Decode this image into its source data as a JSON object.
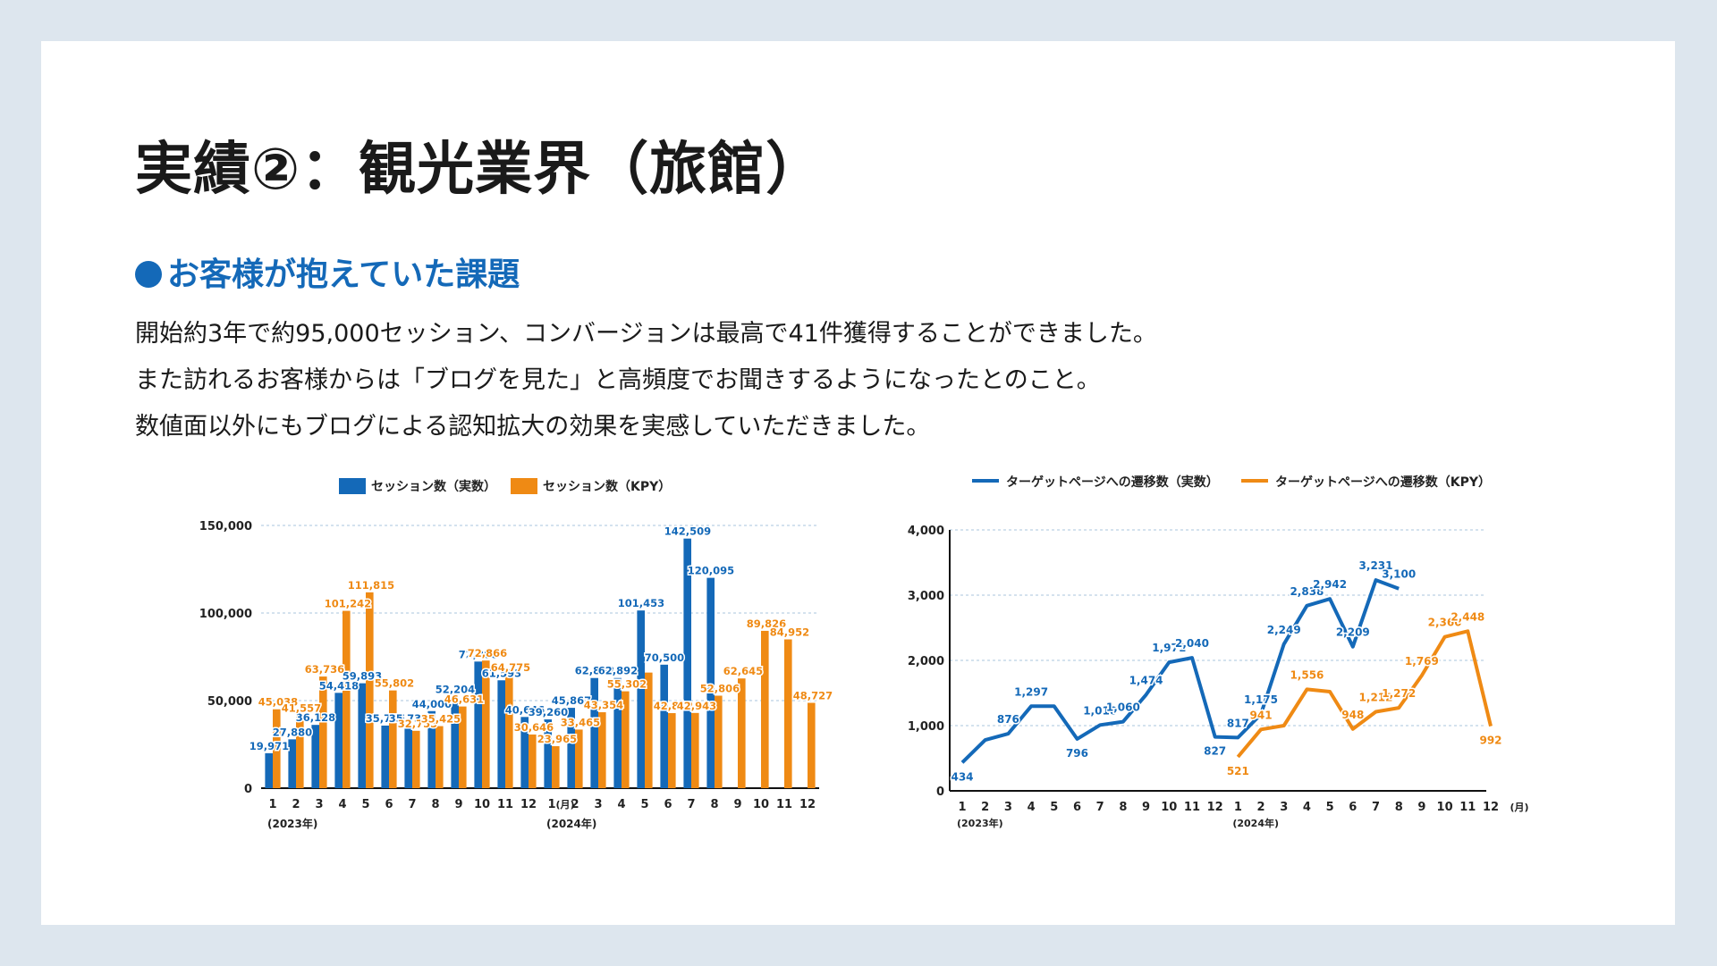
{
  "title": "実績②：観光業界（旅館）",
  "section": {
    "heading": "お客様が抱えていた課題"
  },
  "description": [
    "開始約3年で約95,000セッション、コンバージョンは最高で41件獲得することができました。",
    "また訪れるお客様からは「ブログを見た」と高頻度でお聞きするようになったとのこと。",
    "数値面以外にもブログによる認知拡大の効果を実感していただきました。"
  ],
  "colors": {
    "actual": "#1469b8",
    "kpi": "#ef8a14",
    "background": "#dde6ee"
  },
  "chart_data": [
    {
      "type": "bar",
      "categories": [
        "1",
        "2",
        "3",
        "4",
        "5",
        "6",
        "7",
        "8",
        "9",
        "10",
        "11",
        "12",
        "1",
        "2",
        "3",
        "4",
        "5",
        "6",
        "7",
        "8",
        "9",
        "10",
        "11",
        "12"
      ],
      "year_labels": [
        "(2023年)",
        "(2024年)"
      ],
      "month_unit": "(月)",
      "series": [
        {
          "name": "セッション数（実数）",
          "values": [
            19971,
            27880,
            36128,
            54418,
            59893,
            35735,
            35735,
            44000,
            52204,
            72288,
            61593,
            40646,
            39260,
            45867,
            62893,
            62892,
            101453,
            70500,
            142509,
            120095,
            null,
            null,
            null,
            null
          ]
        },
        {
          "name": "セッション数（KPY）",
          "values": [
            45038,
            41557,
            63736,
            101242,
            111815,
            55802,
            32755,
            35425,
            46631,
            72866,
            64775,
            30646,
            23965,
            33465,
            43354,
            55302,
            66000,
            42842,
            42943,
            52806,
            62645,
            89826,
            84952,
            48727
          ]
        }
      ],
      "data_labels": [
        [
          "19,971",
          "27,880",
          "36,128",
          "54,418",
          "59,893",
          "35,735",
          "35,735",
          "44,000",
          "52,204",
          "72,288",
          "61,593",
          "40,646",
          "39,260",
          "45,867",
          "62,893",
          "62,892",
          "101,453",
          "70,500",
          "142,509",
          "120,095",
          "",
          "",
          "",
          ""
        ],
        [
          "45,038",
          "41,557",
          "63,736",
          "101,242",
          "111,815",
          "55,802",
          "32,755",
          "35,425",
          "46,631",
          "72,866",
          "64,775",
          "30,646",
          "23,965",
          "33,465",
          "43,354",
          "55,302",
          "",
          "42,842",
          "42,943",
          "52,806",
          "62,645",
          "89,826",
          "84,952",
          "48,727"
        ]
      ],
      "ylim": [
        0,
        150000
      ],
      "yticks": [
        "0",
        "50,000",
        "100,000",
        "150,000"
      ],
      "ytick_values": [
        0,
        50000,
        100000,
        150000
      ],
      "grid": true,
      "legend_position": "top"
    },
    {
      "type": "line",
      "categories": [
        "1",
        "2",
        "3",
        "4",
        "5",
        "6",
        "7",
        "8",
        "9",
        "10",
        "11",
        "12",
        "1",
        "2",
        "3",
        "4",
        "5",
        "6",
        "7",
        "8",
        "9",
        "10",
        "11",
        "12"
      ],
      "year_labels": [
        "(2023年)",
        "(2024年)"
      ],
      "month_unit": "(月)",
      "series": [
        {
          "name": "ターゲットページへの遷移数（実数）",
          "values": [
            434,
            780,
            876,
            1297,
            1297,
            796,
            1010,
            1060,
            1474,
            1971,
            2040,
            827,
            817,
            1175,
            2249,
            2838,
            2942,
            2209,
            3231,
            3100,
            null,
            null,
            null,
            null
          ]
        },
        {
          "name": "ターゲットページへの遷移数（KPY）",
          "values": [
            null,
            null,
            null,
            null,
            null,
            null,
            null,
            null,
            null,
            null,
            null,
            null,
            521,
            941,
            1000,
            1556,
            1520,
            948,
            1212,
            1272,
            1769,
            2360,
            2448,
            992
          ]
        }
      ],
      "data_labels": [
        [
          "434",
          "",
          "876",
          "1,297",
          "",
          "796",
          "1,010",
          "1,060",
          "1,474",
          "1,971",
          "2,040",
          "827",
          "817",
          "1,175",
          "2,249",
          "2,838",
          "2,942",
          "2,209",
          "3,231",
          "3,100",
          "",
          "",
          "",
          ""
        ],
        [
          "",
          "",
          "",
          "",
          "",
          "",
          "",
          "",
          "",
          "",
          "",
          "",
          "521",
          "941",
          "",
          "1,556",
          "",
          "948",
          "1,212",
          "1,272",
          "1,769",
          "2,360",
          "2,448",
          "992"
        ]
      ],
      "ylim": [
        0,
        4000
      ],
      "yticks": [
        "0",
        "1,000",
        "2,000",
        "3,000",
        "4,000"
      ],
      "ytick_values": [
        0,
        1000,
        2000,
        3000,
        4000
      ],
      "grid": true,
      "legend_position": "top"
    }
  ]
}
